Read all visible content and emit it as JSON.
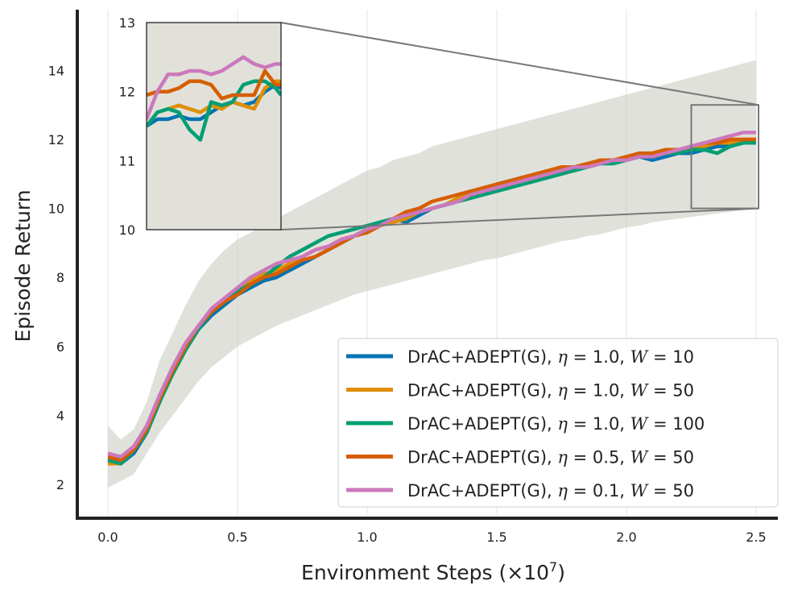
{
  "chart_data": {
    "type": "line",
    "xlabel_main": "Environment Steps (×10",
    "xlabel_exp": "7",
    "xlabel_close": ")",
    "ylabel": "Episode Return",
    "xlim": [
      -0.12,
      2.62
    ],
    "ylim": [
      1.0,
      15.6
    ],
    "xticks": [
      0.0,
      0.5,
      1.0,
      1.5,
      2.0,
      2.5
    ],
    "xtick_labels": [
      "0.0",
      "0.5",
      "1.0",
      "1.5",
      "2.0",
      "2.5"
    ],
    "yticks": [
      2,
      4,
      6,
      8,
      10,
      12,
      14
    ],
    "ytick_labels": [
      "2",
      "4",
      "6",
      "8",
      "10",
      "12",
      "14"
    ],
    "legend_position": "lower-right",
    "x": [
      0.0,
      0.05,
      0.1,
      0.15,
      0.2,
      0.25,
      0.3,
      0.35,
      0.4,
      0.45,
      0.5,
      0.55,
      0.6,
      0.65,
      0.7,
      0.75,
      0.8,
      0.85,
      0.9,
      0.95,
      1.0,
      1.05,
      1.1,
      1.15,
      1.2,
      1.25,
      1.3,
      1.35,
      1.4,
      1.45,
      1.5,
      1.55,
      1.6,
      1.65,
      1.7,
      1.75,
      1.8,
      1.85,
      1.9,
      1.95,
      2.0,
      2.05,
      2.1,
      2.15,
      2.2,
      2.25,
      2.3,
      2.35,
      2.4,
      2.45,
      2.5
    ],
    "band": {
      "lower": [
        1.9,
        2.1,
        2.3,
        2.9,
        3.5,
        4.0,
        4.5,
        5.0,
        5.4,
        5.7,
        6.0,
        6.2,
        6.4,
        6.6,
        6.75,
        6.9,
        7.05,
        7.2,
        7.35,
        7.5,
        7.6,
        7.7,
        7.8,
        7.9,
        8.0,
        8.1,
        8.2,
        8.3,
        8.4,
        8.5,
        8.55,
        8.65,
        8.75,
        8.85,
        8.95,
        9.05,
        9.1,
        9.2,
        9.25,
        9.35,
        9.45,
        9.5,
        9.6,
        9.65,
        9.7,
        9.75,
        9.8,
        9.85,
        9.9,
        9.95,
        10.0
      ],
      "upper": [
        3.7,
        3.3,
        3.6,
        4.4,
        5.6,
        6.4,
        7.2,
        7.9,
        8.4,
        8.8,
        9.1,
        9.3,
        9.5,
        9.7,
        9.9,
        10.1,
        10.3,
        10.5,
        10.7,
        10.9,
        11.1,
        11.2,
        11.4,
        11.5,
        11.6,
        11.8,
        11.9,
        12.0,
        12.1,
        12.2,
        12.3,
        12.4,
        12.5,
        12.6,
        12.7,
        12.8,
        12.9,
        13.0,
        13.1,
        13.2,
        13.3,
        13.4,
        13.5,
        13.6,
        13.7,
        13.8,
        13.9,
        14.0,
        14.1,
        14.2,
        14.3
      ]
    },
    "series": [
      {
        "name": "DrAC+ADEPT(G), η = 1.0, W = 10",
        "eta": "1.0",
        "w": "10",
        "color": "#0173b2",
        "values": [
          2.7,
          2.6,
          2.9,
          3.5,
          4.4,
          5.3,
          6.0,
          6.5,
          6.9,
          7.2,
          7.5,
          7.7,
          7.9,
          8.0,
          8.2,
          8.4,
          8.6,
          8.8,
          9.0,
          9.2,
          9.4,
          9.5,
          9.7,
          9.6,
          9.8,
          10.0,
          10.1,
          10.2,
          10.4,
          10.5,
          10.7,
          10.8,
          10.9,
          10.9,
          11.0,
          11.1,
          11.1,
          11.2,
          11.3,
          11.4,
          11.4,
          11.5,
          11.4,
          11.5,
          11.6,
          11.6,
          11.7,
          11.8,
          11.8,
          11.9,
          11.9
        ]
      },
      {
        "name": "DrAC+ADEPT(G), η = 1.0, W = 50",
        "eta": "1.0",
        "w": "50",
        "color": "#de8f05",
        "values": [
          2.6,
          2.6,
          3.0,
          3.6,
          4.5,
          5.4,
          6.1,
          6.6,
          7.0,
          7.3,
          7.6,
          7.9,
          8.1,
          8.2,
          8.4,
          8.6,
          8.8,
          8.9,
          9.1,
          9.2,
          9.4,
          9.5,
          9.6,
          9.7,
          9.9,
          10.0,
          10.1,
          10.3,
          10.4,
          10.5,
          10.6,
          10.7,
          10.8,
          10.9,
          11.0,
          11.1,
          11.2,
          11.3,
          11.3,
          11.4,
          11.5,
          11.5,
          11.6,
          11.6,
          11.7,
          11.7,
          11.8,
          11.9,
          11.9,
          12.0,
          12.0
        ]
      },
      {
        "name": "DrAC+ADEPT(G), η = 1.0, W = 100",
        "eta": "1.0",
        "w": "100",
        "color": "#029e73",
        "values": [
          2.7,
          2.6,
          3.0,
          3.5,
          4.4,
          5.2,
          5.9,
          6.5,
          7.0,
          7.3,
          7.6,
          7.8,
          8.0,
          8.3,
          8.6,
          8.8,
          9.0,
          9.2,
          9.3,
          9.4,
          9.5,
          9.6,
          9.7,
          9.8,
          9.9,
          10.0,
          10.1,
          10.2,
          10.3,
          10.4,
          10.5,
          10.6,
          10.7,
          10.8,
          10.9,
          11.0,
          11.1,
          11.2,
          11.3,
          11.3,
          11.4,
          11.5,
          11.5,
          11.6,
          11.6,
          11.7,
          11.7,
          11.6,
          11.8,
          11.9,
          11.9
        ]
      },
      {
        "name": "DrAC+ADEPT(G), η = 0.5, W = 50",
        "eta": "0.5",
        "w": "50",
        "color": "#d55e00",
        "values": [
          2.8,
          2.7,
          3.0,
          3.6,
          4.5,
          5.3,
          6.0,
          6.6,
          7.0,
          7.3,
          7.5,
          7.8,
          8.0,
          8.1,
          8.3,
          8.5,
          8.6,
          8.8,
          9.0,
          9.2,
          9.3,
          9.5,
          9.7,
          9.9,
          10.0,
          10.2,
          10.3,
          10.4,
          10.5,
          10.6,
          10.7,
          10.8,
          10.9,
          11.0,
          11.1,
          11.2,
          11.2,
          11.3,
          11.4,
          11.4,
          11.5,
          11.6,
          11.6,
          11.7,
          11.7,
          11.8,
          11.9,
          11.9,
          12.0,
          12.0,
          12.0
        ]
      },
      {
        "name": "DrAC+ADEPT(G), η = 0.1, W = 50",
        "eta": "0.1",
        "w": "50",
        "color": "#cc78bc",
        "values": [
          2.9,
          2.8,
          3.1,
          3.7,
          4.6,
          5.4,
          6.1,
          6.6,
          7.1,
          7.4,
          7.7,
          8.0,
          8.2,
          8.4,
          8.5,
          8.6,
          8.8,
          8.9,
          9.1,
          9.2,
          9.4,
          9.5,
          9.7,
          9.8,
          9.9,
          10.0,
          10.1,
          10.2,
          10.4,
          10.5,
          10.6,
          10.7,
          10.8,
          10.9,
          11.0,
          11.1,
          11.2,
          11.2,
          11.3,
          11.4,
          11.4,
          11.5,
          11.5,
          11.6,
          11.7,
          11.8,
          11.9,
          12.0,
          12.1,
          12.2,
          12.2
        ]
      }
    ],
    "inset": {
      "xlim": [
        2.25,
        2.5
      ],
      "ylim": [
        10.0,
        13.0
      ],
      "yticks": [
        10,
        11,
        12,
        13
      ],
      "ytick_labels": [
        "10",
        "11",
        "12",
        "13"
      ],
      "x": [
        2.25,
        2.27,
        2.29,
        2.31,
        2.33,
        2.35,
        2.37,
        2.39,
        2.41,
        2.43,
        2.45,
        2.47,
        2.49,
        2.5
      ],
      "series_values": [
        [
          11.5,
          11.6,
          11.6,
          11.65,
          11.6,
          11.6,
          11.7,
          11.8,
          11.85,
          11.8,
          11.85,
          12.0,
          12.1,
          12.05
        ],
        [
          11.5,
          11.7,
          11.75,
          11.8,
          11.75,
          11.7,
          11.8,
          11.75,
          11.85,
          11.8,
          11.75,
          12.05,
          12.15,
          12.15
        ],
        [
          11.5,
          11.7,
          11.75,
          11.7,
          11.45,
          11.3,
          11.85,
          11.8,
          11.85,
          12.1,
          12.15,
          12.15,
          12.05,
          11.95
        ],
        [
          11.95,
          12.0,
          12.0,
          12.05,
          12.15,
          12.15,
          12.1,
          11.9,
          11.95,
          11.95,
          11.95,
          12.3,
          12.1,
          12.1
        ],
        [
          11.6,
          12.0,
          12.25,
          12.25,
          12.3,
          12.3,
          12.25,
          12.3,
          12.4,
          12.5,
          12.4,
          12.35,
          12.4,
          12.4
        ]
      ]
    }
  }
}
